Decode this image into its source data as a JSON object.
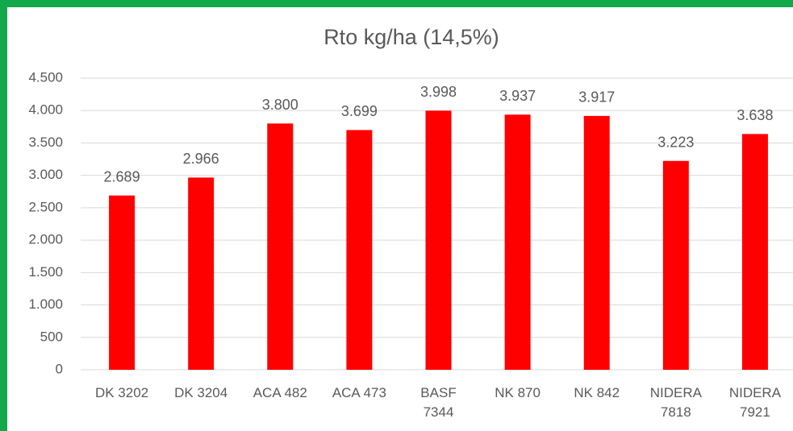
{
  "chart_data": {
    "type": "bar",
    "title": "Rto kg/ha (14,5%)",
    "categories": [
      "DK 3202",
      "DK 3204",
      "ACA 482",
      "ACA 473",
      "BASF 7344",
      "NK 870",
      "NK 842",
      "NIDERA 7818",
      "NIDERA 7921"
    ],
    "values": [
      2689,
      2966,
      3800,
      3699,
      3998,
      3937,
      3917,
      3223,
      3638
    ],
    "value_labels": [
      "2.689",
      "2.966",
      "3.800",
      "3.699",
      "3.998",
      "3.937",
      "3.917",
      "3.223",
      "3.638"
    ],
    "color": "#ff0000",
    "ylim": [
      0,
      4500
    ],
    "yticks": [
      0,
      500,
      {
        "value": 1000,
        "label": "1.000"
      },
      {
        "value": 1500,
        "label": "1.500"
      },
      {
        "value": 2000,
        "label": "2.000"
      },
      {
        "value": 2500,
        "label": "2.500"
      },
      {
        "value": 3000,
        "label": "3.000"
      },
      {
        "value": 3500,
        "label": "3.500"
      },
      {
        "value": 4000,
        "label": "4.000"
      },
      {
        "value": 4500,
        "label": "4.500"
      }
    ],
    "grid": true
  }
}
